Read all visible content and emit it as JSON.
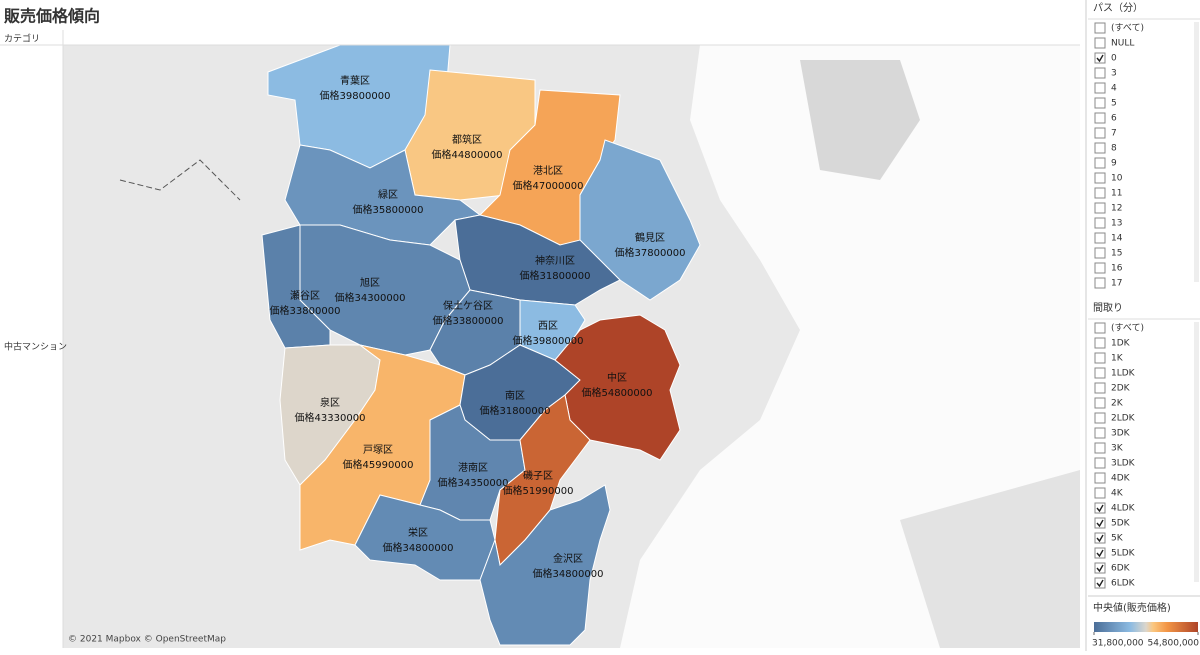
{
  "header": {
    "title": "販売価格傾向",
    "row_header": "カテゴリ",
    "row_label": "中古マンション"
  },
  "map": {
    "attribution": "© 2021 Mapbox © OpenStreetMap",
    "regions": [
      {
        "name": "青葉区",
        "label": "価格39800000",
        "value": 39800000
      },
      {
        "name": "都筑区",
        "label": "価格44800000",
        "value": 44800000
      },
      {
        "name": "港北区",
        "label": "価格47000000",
        "value": 47000000
      },
      {
        "name": "鶴見区",
        "label": "価格37800000",
        "value": 37800000
      },
      {
        "name": "緑区",
        "label": "価格35800000",
        "value": 35800000
      },
      {
        "name": "神奈川区",
        "label": "価格31800000",
        "value": 31800000
      },
      {
        "name": "旭区",
        "label": "価格34300000",
        "value": 34300000
      },
      {
        "name": "瀬谷区",
        "label": "価格33800000",
        "value": 33800000
      },
      {
        "name": "保土ケ谷区",
        "label": "価格33800000",
        "value": 33800000
      },
      {
        "name": "西区",
        "label": "価格39800000",
        "value": 39800000
      },
      {
        "name": "泉区",
        "label": "価格43330000",
        "value": 43330000
      },
      {
        "name": "戸塚区",
        "label": "価格45990000",
        "value": 45990000
      },
      {
        "name": "南区",
        "label": "価格31800000",
        "value": 31800000
      },
      {
        "name": "中区",
        "label": "価格54800000",
        "value": 54800000
      },
      {
        "name": "港南区",
        "label": "価格34350000",
        "value": 34350000
      },
      {
        "name": "磯子区",
        "label": "価格51990000",
        "value": 51990000
      },
      {
        "name": "栄区",
        "label": "価格34800000",
        "value": 34800000
      },
      {
        "name": "金沢区",
        "label": "価格34800000",
        "value": 34800000
      }
    ]
  },
  "filters": [
    {
      "title": "パス（分）",
      "items": [
        {
          "label": "(すべて)",
          "checked": false
        },
        {
          "label": "NULL",
          "checked": false
        },
        {
          "label": "0",
          "checked": true
        },
        {
          "label": "3",
          "checked": false
        },
        {
          "label": "4",
          "checked": false
        },
        {
          "label": "5",
          "checked": false
        },
        {
          "label": "6",
          "checked": false
        },
        {
          "label": "7",
          "checked": false
        },
        {
          "label": "8",
          "checked": false
        },
        {
          "label": "9",
          "checked": false
        },
        {
          "label": "10",
          "checked": false
        },
        {
          "label": "11",
          "checked": false
        },
        {
          "label": "12",
          "checked": false
        },
        {
          "label": "13",
          "checked": false
        },
        {
          "label": "14",
          "checked": false
        },
        {
          "label": "15",
          "checked": false
        },
        {
          "label": "16",
          "checked": false
        },
        {
          "label": "17",
          "checked": false
        }
      ]
    },
    {
      "title": "間取り",
      "items": [
        {
          "label": "(すべて)",
          "checked": false
        },
        {
          "label": "1DK",
          "checked": false
        },
        {
          "label": "1K",
          "checked": false
        },
        {
          "label": "1LDK",
          "checked": false
        },
        {
          "label": "2DK",
          "checked": false
        },
        {
          "label": "2K",
          "checked": false
        },
        {
          "label": "2LDK",
          "checked": false
        },
        {
          "label": "3DK",
          "checked": false
        },
        {
          "label": "3K",
          "checked": false
        },
        {
          "label": "3LDK",
          "checked": false
        },
        {
          "label": "4DK",
          "checked": false
        },
        {
          "label": "4K",
          "checked": false
        },
        {
          "label": "4LDK",
          "checked": true
        },
        {
          "label": "5DK",
          "checked": true
        },
        {
          "label": "5K",
          "checked": true
        },
        {
          "label": "5LDK",
          "checked": true
        },
        {
          "label": "6DK",
          "checked": true
        },
        {
          "label": "6LDK",
          "checked": true
        }
      ]
    }
  ],
  "legend": {
    "title": "中央値(販売価格)",
    "min": {
      "value": 31800000,
      "label": "31,800,000"
    },
    "max": {
      "value": 54800000,
      "label": "54,800,000"
    }
  }
}
